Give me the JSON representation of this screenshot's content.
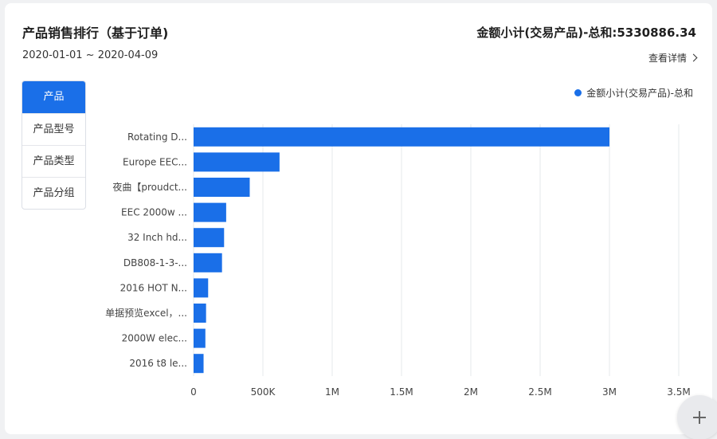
{
  "header": {
    "title": "产品销售排行（基于订单)",
    "date_range": "2020-01-01 ~ 2020-04-09",
    "summary": "金额小计(交易产品)-总和:5330886.34",
    "detail_link": "查看详情"
  },
  "tabs": [
    {
      "label": "产品",
      "active": true
    },
    {
      "label": "产品型号",
      "active": false
    },
    {
      "label": "产品类型",
      "active": false
    },
    {
      "label": "产品分组",
      "active": false
    }
  ],
  "colors": {
    "accent": "#1a6fe8",
    "grid": "#e6e8eb",
    "text": "#333333"
  },
  "chart_data": {
    "type": "bar",
    "orientation": "horizontal",
    "categories": [
      "Rotating D...",
      "Europe EEC...",
      "夜曲【proudct...",
      "EEC 2000w ...",
      "32 Inch hd...",
      "DB808-1-3-...",
      "2016 HOT N...",
      "单据预览excel，...",
      "2000W elec...",
      "2016 t8 le..."
    ],
    "series": [
      {
        "name": "金额小计(交易产品)-总和",
        "values": [
          3000000,
          620000,
          405000,
          235000,
          220000,
          205000,
          105000,
          90000,
          85000,
          72000
        ]
      }
    ],
    "xticks": [
      "0",
      "500K",
      "1M",
      "1.5M",
      "2M",
      "2.5M",
      "3M",
      "3.5M"
    ],
    "xlim": [
      0,
      3500000
    ],
    "grid": true,
    "legend_position": "top-right"
  }
}
